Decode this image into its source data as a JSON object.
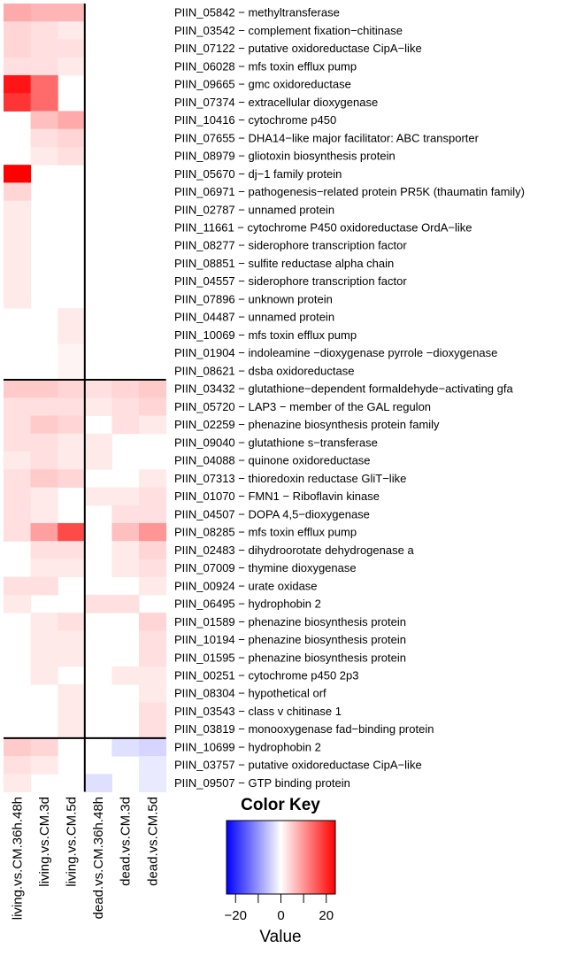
{
  "chart_data": {
    "type": "heatmap",
    "columns": [
      "living.vs.CM.36h.48h",
      "living.vs.CM.3d",
      "living.vs.CM.5d",
      "dead.vs.CM.36h.48h",
      "dead.vs.CM.3d",
      "dead.vs.CM.5d"
    ],
    "rows": [
      {
        "label": "PIIN_05842 − methyltransferase",
        "values": [
          8,
          7,
          7,
          null,
          null,
          null
        ]
      },
      {
        "label": "PIIN_03542 − complement fixation−chitinase",
        "values": [
          4,
          3,
          2,
          null,
          null,
          null
        ]
      },
      {
        "label": "PIIN_07122 − putative oxidoreductase CipA−like",
        "values": [
          4,
          3,
          3,
          null,
          null,
          null
        ]
      },
      {
        "label": "PIIN_06028 − mfs toxin efflux pump",
        "values": [
          3,
          3,
          2,
          null,
          null,
          null
        ]
      },
      {
        "label": "PIIN_09665 − gmc oxidoreductase",
        "values": [
          22,
          14,
          null,
          null,
          null,
          null
        ]
      },
      {
        "label": "PIIN_07374 − extracellular dioxygenase",
        "values": [
          19,
          14,
          null,
          null,
          null,
          null
        ]
      },
      {
        "label": "PIIN_10416 − cytochrome p450",
        "values": [
          null,
          6,
          8,
          null,
          null,
          null
        ]
      },
      {
        "label": "PIIN_07655 − DHA14−like major facilitator: ABC transporter",
        "values": [
          null,
          3,
          4,
          null,
          null,
          null
        ]
      },
      {
        "label": "PIIN_08979 − gliotoxin biosynthesis protein",
        "values": [
          null,
          2,
          3,
          null,
          null,
          null
        ]
      },
      {
        "label": "PIIN_05670 − dj−1 family protein",
        "values": [
          24,
          null,
          null,
          null,
          null,
          null
        ]
      },
      {
        "label": "PIIN_06971 − pathogenesis−related protein PR5K (thaumatin family)",
        "values": [
          4,
          null,
          null,
          null,
          null,
          null
        ]
      },
      {
        "label": "PIIN_02787 − unnamed protein",
        "values": [
          2,
          null,
          null,
          null,
          null,
          null
        ]
      },
      {
        "label": "PIIN_11661 − cytochrome P450 oxidoreductase OrdA−like",
        "values": [
          2,
          null,
          null,
          null,
          null,
          null
        ]
      },
      {
        "label": "PIIN_08277 − siderophore transcription factor",
        "values": [
          2,
          null,
          null,
          null,
          null,
          null
        ]
      },
      {
        "label": "PIIN_08851 − sulfite reductase alpha chain",
        "values": [
          2,
          null,
          null,
          null,
          null,
          null
        ]
      },
      {
        "label": "PIIN_04557 − siderophore transcription factor",
        "values": [
          2,
          null,
          null,
          null,
          null,
          null
        ]
      },
      {
        "label": "PIIN_07896 − unknown protein",
        "values": [
          2,
          null,
          null,
          null,
          null,
          null
        ]
      },
      {
        "label": "PIIN_04487 − unnamed protein",
        "values": [
          null,
          null,
          2,
          null,
          null,
          null
        ]
      },
      {
        "label": "PIIN_10069 − mfs toxin efflux pump",
        "values": [
          null,
          null,
          2,
          null,
          null,
          null
        ]
      },
      {
        "label": "PIIN_01904 − indoleamine −dioxygenase pyrrole −dioxygenase",
        "values": [
          null,
          null,
          1,
          null,
          null,
          null
        ]
      },
      {
        "label": "PIIN_08621 − dsba oxidoreductase",
        "values": [
          null,
          null,
          1,
          null,
          null,
          null
        ]
      },
      {
        "label": "PIIN_03432 − glutathione−dependent formaldehyde−activating gfa",
        "values": [
          5,
          5,
          4,
          3,
          4,
          5
        ]
      },
      {
        "label": "PIIN_05720 − LAP3 − member of the GAL regulon",
        "values": [
          3,
          3,
          3,
          2,
          3,
          4
        ]
      },
      {
        "label": "PIIN_02259 − phenazine biosynthesis protein family",
        "values": [
          3,
          5,
          4,
          null,
          3,
          2
        ]
      },
      {
        "label": "PIIN_09040 − glutathione s−transferase",
        "values": [
          3,
          3,
          2,
          2,
          null,
          null
        ]
      },
      {
        "label": "PIIN_04088 − quinone oxidoreductase",
        "values": [
          2,
          3,
          2,
          2,
          null,
          null
        ]
      },
      {
        "label": "PIIN_07313 − thioredoxin reductase GliT−like",
        "values": [
          3,
          5,
          4,
          null,
          null,
          2
        ]
      },
      {
        "label": "PIIN_01070 − FMN1 − Riboflavin kinase",
        "values": [
          3,
          2,
          null,
          2,
          2,
          3
        ]
      },
      {
        "label": "PIIN_04507 − DOPA 4,5−dioxygenase",
        "values": [
          3,
          2,
          null,
          null,
          3,
          3
        ]
      },
      {
        "label": "PIIN_08285 − mfs toxin efflux pump",
        "values": [
          3,
          9,
          17,
          null,
          6,
          10
        ]
      },
      {
        "label": "PIIN_02483 − dihydroorotate dehydrogenase a",
        "values": [
          null,
          3,
          3,
          null,
          2,
          4
        ]
      },
      {
        "label": "PIIN_07009 − thymine dioxygenase",
        "values": [
          null,
          2,
          2,
          null,
          2,
          3
        ]
      },
      {
        "label": "PIIN_00924 − urate oxidase",
        "values": [
          3,
          3,
          null,
          null,
          null,
          2
        ]
      },
      {
        "label": "PIIN_06495 − hydrophobin 2",
        "values": [
          2,
          null,
          null,
          3,
          3,
          null
        ]
      },
      {
        "label": "PIIN_01589 − phenazine biosynthesis protein",
        "values": [
          null,
          2,
          3,
          null,
          null,
          4
        ]
      },
      {
        "label": "PIIN_10194 − phenazine biosynthesis protein",
        "values": [
          null,
          2,
          2,
          null,
          null,
          3
        ]
      },
      {
        "label": "PIIN_01595 − phenazine biosynthesis protein",
        "values": [
          null,
          2,
          2,
          null,
          null,
          3
        ]
      },
      {
        "label": "PIIN_00251 − cytochrome p450 2p3",
        "values": [
          null,
          2,
          null,
          null,
          2,
          2
        ]
      },
      {
        "label": "PIIN_08304 − hypothetical orf",
        "values": [
          null,
          null,
          2,
          null,
          null,
          2
        ]
      },
      {
        "label": "PIIN_03543 − class v chitinase 1",
        "values": [
          null,
          null,
          2,
          null,
          null,
          3
        ]
      },
      {
        "label": "PIIN_03819 − monooxygenase fad−binding protein",
        "values": [
          null,
          null,
          2,
          null,
          null,
          3
        ]
      },
      {
        "label": "PIIN_10699 − hydrophobin 2",
        "values": [
          5,
          4,
          null,
          null,
          -3,
          -4
        ]
      },
      {
        "label": "PIIN_03757 − putative oxidoreductase CipA−like",
        "values": [
          3,
          2,
          null,
          null,
          null,
          -2
        ]
      },
      {
        "label": "PIIN_09507 − GTP binding protein",
        "values": [
          2,
          null,
          null,
          -3,
          null,
          -2
        ]
      }
    ],
    "row_separators_after": [
      20,
      40
    ],
    "column_separator_after": 2,
    "color_key": {
      "title": "Color Key",
      "xlabel": "Value",
      "range": [
        -24,
        24
      ],
      "ticks": [
        -20,
        0,
        20
      ],
      "tick_labels": [
        "−20",
        "0",
        "20"
      ],
      "minor_ticks": [
        -10,
        10
      ],
      "low_color": "#0000ff",
      "mid_color": "#ffffff",
      "high_color": "#ff0000"
    }
  }
}
